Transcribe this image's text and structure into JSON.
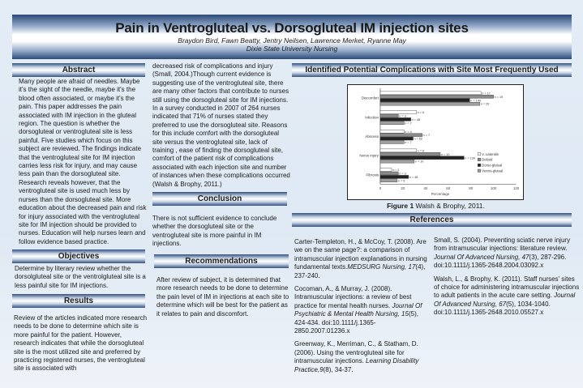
{
  "header": {
    "title": "Pain in Ventrogluteal vs. Dorsogluteal IM injection sites",
    "authors": "Braydon Bird, Fawn Beatty,  Jentry Neilsen, Lawrence Merket, Ryanne May",
    "school": "Dixie State University Nursing"
  },
  "abstract": {
    "heading": "Abstract",
    "text": "Many people are afraid of needles.  Maybe it's the sight of the needle, maybe it's the blood often associated, or maybe it's the pain.  This paper addresses the pain associated with IM injection in the gluteal region.  The question  is whether the dorsogluteal or ventrogluteal site is less painful.  Five studies which focus on this subject are reviewed.  The findings indicate that the ventrogluteal site for IM injection carries less risk for injury, and may cause less pain than the dorsogluteal site.  Research reveals however, that the ventrogluteal site is used much less by nurses than the dorsogluteal site.  More education about the decreased pain and risk for injury associated with the ventrogluteal site for IM injection should be provided to nurses.  Education will help nurses learn and follow evidence based practice."
  },
  "objectives": {
    "heading": "Objectives",
    "text": "Determine by literary review  whether the dorsolgluteal site or the ventrolgluteal  site is a less painful site for IM injections."
  },
  "results": {
    "heading": "Results",
    "text": "Review of the articles indicated more research needs to be done to determine which site is more painful for the patient. However,  research indicates that while  the dorsogluteal site is the most utilized site and preferred by practicing registered nurses, the ventrogluteal site is associated with",
    "text_cont": "decreased risk of complications and injury (Small, 2004.)Though  current evidence is suggesting use of the ventrogluteal site, there are many other factors that contribute to nurses still using the dorsogluteal site for IM injections.  In a survey conducted in 2007 of  264 nurses indicated that 71% of nurses stated they preferred to use the dorsogluteal site.  Reasons for  this include comfort with the dorsogluteal site  versus the ventrogluteal site,  lack of training ,  ease of  finding the dorsogluteal site, comfort of the patient risk of complications associated with each injection site and number of instances when these complications occurred (Walsh & Brophy, 2011.)"
  },
  "conclusion": {
    "heading": "Conclusion",
    "text": "There is not sufficient evidence to conclude whether the dorsogluteal site or the ventrogluteal site is  more painful in IM injections."
  },
  "recommendations": {
    "heading": "Recommendations",
    "text": "After review of  subject,  it is determined that more research  needs to be done to determine the  pain level of IM in injections at each site to determine which will be best for the patient as it relates to pain and discomfort."
  },
  "figure": {
    "heading": "Identified Potential Complications with Site Most Frequently Used",
    "caption_bold": "Figure 1",
    "caption": " Walsh & Brophy, 2011."
  },
  "chart_data": {
    "type": "bar",
    "orientation": "horizontal",
    "categories": [
      "Discomfort",
      "Infection",
      "Abscess",
      "Nerve injury",
      "Fibrosis"
    ],
    "xlabel": "Percentage",
    "xlim": [
      0,
      120
    ],
    "xticks": [
      0,
      20,
      40,
      60,
      80,
      100,
      120
    ],
    "legend": "right",
    "series": [
      {
        "name": "V. Lateralis",
        "color": "#ffffff",
        "values": [
          89,
          32,
          21,
          32,
          10
        ],
        "labels": [
          "n = 17",
          "n = 6",
          "n = 4",
          "n = 6",
          "n = 2"
        ]
      },
      {
        "name": "Deltoid",
        "color": "#8a8a8a",
        "values": [
          100,
          16,
          37,
          53,
          16
        ],
        "labels": [
          "n = 19",
          "n = 3",
          "n = 7",
          "n = 10",
          "n = 3"
        ]
      },
      {
        "name": "Dorso-gluteal",
        "color": "#222222",
        "values": [
          79,
          27,
          29,
          74,
          25
        ],
        "labels": [
          "n = 144",
          "n = 48",
          "n = 52",
          "n = 134",
          "n = 48"
        ]
      },
      {
        "name": "Ventro-gluteal",
        "color": "#a0a0a0",
        "values": [
          88,
          21,
          21,
          30,
          15
        ],
        "labels": [
          "n = 29",
          "n = 7",
          "n = 7",
          "n = 10",
          "n = 5"
        ]
      }
    ]
  },
  "references": {
    "heading": "References",
    "items": [
      {
        "pre": "Carter-Templeton, H., & McCoy, T. (2008). Are we on the same page?: a comparison of intramuscular injection explanations in nursing fundamental texts.",
        "it": "MEDSURG Nursing, 17",
        "post": "(4), 237-240."
      },
      {
        "pre": "Cocoman, A., & Murray, J. (2008). Intramuscular injections: a review of best practice for mental health nurses. ",
        "it": "Journal Of Psychiatric & Mental Health Nursing, 15",
        "post": "(5), 424-434. doi:10.1111/j.1365-2850.2007.01236.x"
      },
      {
        "pre": "Greenway, K., Merriman, C., & Statham, D. (2006). Using the ventrogluteal site for intramuscular injections. ",
        "it": "Learning Disability Practice,9",
        "post": "(8), 34-37."
      },
      {
        "pre": "Small, S. (2004). Preventing sciatic nerve injury from intramuscular injections: literature review. ",
        "it": "Journal Of Advanced Nursing, 47",
        "post": "(3), 287-296. doi:10.1111/j.1365-2648.2004.03092.x"
      },
      {
        "pre": "Walsh, L., & Brophy, K. (2011). Staff nurses' sites of choice for administering intramuscular injections to adult patients in the acute care setting. ",
        "it": "Journal Of Advanced Nursing, 67",
        "post": "(5), 1034-1040. doi:10.1111/j.1365-2648.2010.05527.x"
      }
    ]
  }
}
